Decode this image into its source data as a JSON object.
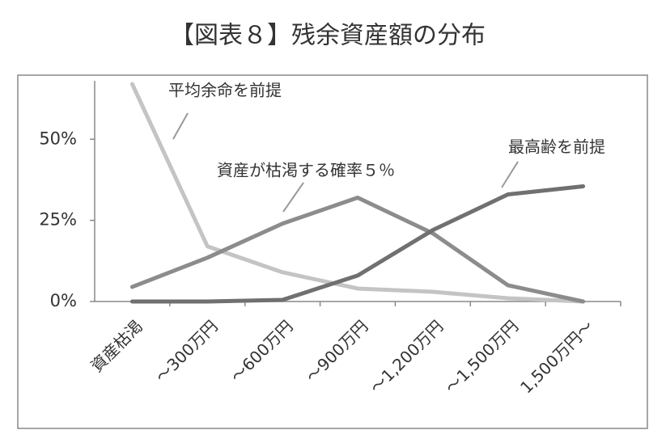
{
  "chart_data": {
    "type": "line",
    "title": "【図表８】残余資産額の分布",
    "categories": [
      "資産枯渇",
      "～300万円",
      "～600万円",
      "～900万円",
      "～1,200万円",
      "～1,500万円",
      "1,500万円～"
    ],
    "series": [
      {
        "name": "平均余命を前提",
        "color": "#c4c4c4",
        "values": [
          67,
          17,
          9,
          4,
          3,
          1,
          0
        ]
      },
      {
        "name": "資産が枯渇する確率５％",
        "color": "#8c8c8c",
        "values": [
          4.5,
          13.5,
          24,
          32,
          21,
          5,
          0
        ]
      },
      {
        "name": "最高齢を前提",
        "color": "#707070",
        "values": [
          0,
          0,
          0.5,
          8,
          22,
          33,
          35.5
        ]
      }
    ],
    "ylim": [
      0,
      68
    ],
    "yticks": [
      {
        "value": 0,
        "label": "0%"
      },
      {
        "value": 25,
        "label": "25%"
      },
      {
        "value": 50,
        "label": "50%"
      }
    ],
    "grid": false
  }
}
